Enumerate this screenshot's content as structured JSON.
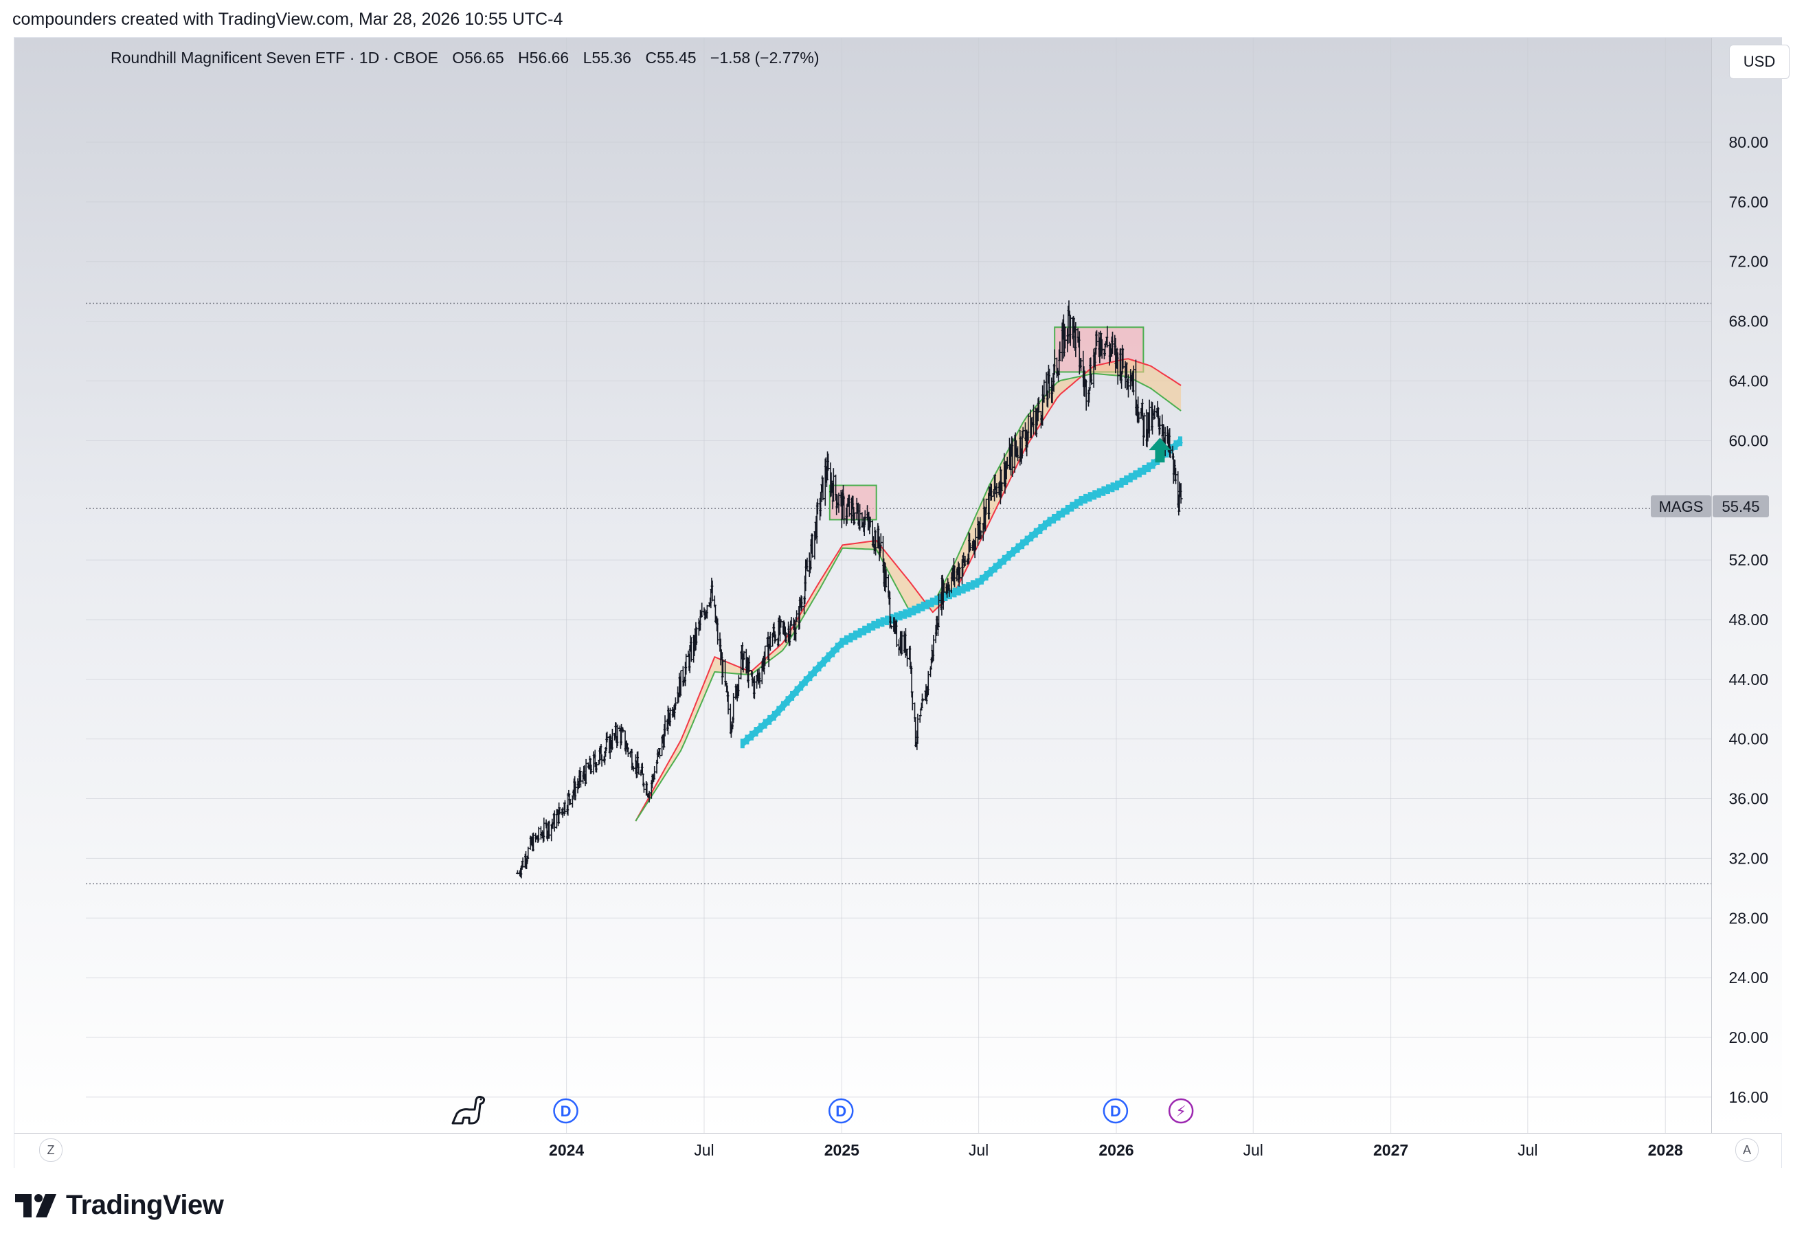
{
  "caption": "compounders created with TradingView.com, Mar 28, 2026 10:55 UTC-4",
  "legend": {
    "name": "Roundhill Magnificent Seven ETF · 1D · CBOE",
    "open": "O56.65",
    "high": "H56.66",
    "low": "L55.36",
    "close": "C55.45",
    "change": "−1.58 (−2.77%)"
  },
  "currency_button": "USD",
  "time_zoom_left": "Z",
  "auto_scale": "A",
  "brand": "TradingView",
  "last_price_tag": {
    "symbol": "MAGS",
    "value": "55.45"
  },
  "colors": {
    "candle": "#131722",
    "ema_fast": "#f23645",
    "ema_slow": "#4caf50",
    "cloud_fill": "#f5c98a",
    "long_ma": "#2bc0d8",
    "box_fill": "#f3b7bd",
    "box_stroke": "#4caf50",
    "arrow": "#089981",
    "dividend_icon": "#2962ff",
    "earnings_icon": "#9c27b0"
  },
  "icons": [
    "dinosaur-icon",
    "dividend-icon",
    "earnings-flash-icon",
    "arrow-up-icon",
    "tradingview-logo-icon"
  ],
  "chart_data": {
    "type": "line",
    "title": "Roundhill Magnificent Seven ETF · 1D · CBOE",
    "xlabel": "",
    "ylabel": "",
    "ylim": [
      13.6,
      87.0
    ],
    "y_ticks": [
      "80.00",
      "76.00",
      "72.00",
      "68.00",
      "64.00",
      "60.00",
      "52.00",
      "48.00",
      "44.00",
      "40.00",
      "36.00",
      "32.00",
      "28.00",
      "24.00",
      "20.00",
      "16.00"
    ],
    "x_ticks": [
      "2024",
      "Jul",
      "2025",
      "Jul",
      "2026",
      "Jul",
      "2027",
      "Jul",
      "2028"
    ],
    "x_range": [
      "2022-04-01",
      "2028-03-01"
    ],
    "horizontal_lines": [
      69.2,
      30.3,
      55.45
    ],
    "series": [
      {
        "style": "price-bars",
        "points": [
          [
            "2023-10-27",
            31.0
          ],
          [
            "2023-11-15",
            33.0
          ],
          [
            "2023-12-15",
            34.5
          ],
          [
            "2024-01-15",
            37.0
          ],
          [
            "2024-02-15",
            39.0
          ],
          [
            "2024-03-10",
            40.5
          ],
          [
            "2024-04-19",
            36.5
          ],
          [
            "2024-05-15",
            41.5
          ],
          [
            "2024-06-15",
            46.0
          ],
          [
            "2024-07-10",
            50.0
          ],
          [
            "2024-08-05",
            41.0
          ],
          [
            "2024-08-20",
            45.5
          ],
          [
            "2024-09-06",
            43.5
          ],
          [
            "2024-09-30",
            47.0
          ],
          [
            "2024-10-31",
            47.5
          ],
          [
            "2024-11-20",
            52.5
          ],
          [
            "2024-12-10",
            58.0
          ],
          [
            "2024-12-31",
            55.5
          ],
          [
            "2025-01-27",
            55.0
          ],
          [
            "2025-02-20",
            53.0
          ],
          [
            "2025-03-10",
            47.0
          ],
          [
            "2025-03-31",
            46.0
          ],
          [
            "2025-04-08",
            40.0
          ],
          [
            "2025-04-22",
            43.0
          ],
          [
            "2025-05-13",
            50.0
          ],
          [
            "2025-06-15",
            52.0
          ],
          [
            "2025-07-15",
            56.0
          ],
          [
            "2025-08-15",
            59.0
          ],
          [
            "2025-09-15",
            61.5
          ],
          [
            "2025-10-10",
            64.5
          ],
          [
            "2025-10-31",
            68.5
          ],
          [
            "2025-11-20",
            63.5
          ],
          [
            "2025-12-10",
            67.0
          ],
          [
            "2025-12-31",
            65.5
          ],
          [
            "2026-01-20",
            64.5
          ],
          [
            "2026-02-05",
            61.0
          ],
          [
            "2026-02-27",
            61.5
          ],
          [
            "2026-03-13",
            59.0
          ],
          [
            "2026-03-27",
            55.45
          ]
        ]
      },
      {
        "style": "ema-fast",
        "points": [
          [
            "2024-04-01",
            34.5
          ],
          [
            "2024-06-01",
            40.0
          ],
          [
            "2024-07-15",
            45.5
          ],
          [
            "2024-09-01",
            44.5
          ],
          [
            "2024-10-15",
            46.5
          ],
          [
            "2024-12-01",
            50.5
          ],
          [
            "2025-01-01",
            53.0
          ],
          [
            "2025-02-15",
            53.3
          ],
          [
            "2025-04-01",
            50.5
          ],
          [
            "2025-05-01",
            48.5
          ],
          [
            "2025-06-01",
            50.0
          ],
          [
            "2025-07-15",
            54.5
          ],
          [
            "2025-09-01",
            59.5
          ],
          [
            "2025-10-15",
            63.0
          ],
          [
            "2025-12-01",
            65.0
          ],
          [
            "2026-01-15",
            65.5
          ],
          [
            "2026-02-15",
            65.0
          ],
          [
            "2026-03-27",
            63.7
          ]
        ]
      },
      {
        "style": "ema-slow",
        "points": [
          [
            "2024-04-01",
            34.5
          ],
          [
            "2024-06-01",
            39.3
          ],
          [
            "2024-07-15",
            44.5
          ],
          [
            "2024-09-01",
            44.3
          ],
          [
            "2024-10-15",
            46.0
          ],
          [
            "2024-12-01",
            50.0
          ],
          [
            "2025-01-01",
            52.8
          ],
          [
            "2025-02-15",
            52.7
          ],
          [
            "2025-04-01",
            48.5
          ],
          [
            "2025-05-01",
            49.0
          ],
          [
            "2025-06-01",
            52.0
          ],
          [
            "2025-07-15",
            57.0
          ],
          [
            "2025-09-01",
            61.5
          ],
          [
            "2025-10-15",
            64.0
          ],
          [
            "2025-12-01",
            64.5
          ],
          [
            "2026-01-15",
            64.3
          ],
          [
            "2026-02-15",
            63.5
          ],
          [
            "2026-03-27",
            62.0
          ]
        ]
      },
      {
        "style": "long-ma",
        "points": [
          [
            "2024-08-21",
            39.7
          ],
          [
            "2024-10-01",
            41.5
          ],
          [
            "2024-11-15",
            44.0
          ],
          [
            "2025-01-01",
            46.5
          ],
          [
            "2025-02-15",
            47.7
          ],
          [
            "2025-04-01",
            48.5
          ],
          [
            "2025-05-15",
            49.5
          ],
          [
            "2025-07-01",
            50.5
          ],
          [
            "2025-08-15",
            52.5
          ],
          [
            "2025-10-01",
            54.5
          ],
          [
            "2025-11-15",
            56.0
          ],
          [
            "2026-01-01",
            57.0
          ],
          [
            "2026-02-15",
            58.3
          ],
          [
            "2026-03-27",
            60.0
          ]
        ]
      }
    ],
    "zones": [
      {
        "x": [
          "2024-12-15",
          "2025-02-15"
        ],
        "y": [
          54.7,
          57.0
        ]
      },
      {
        "x": [
          "2025-10-10",
          "2026-02-05"
        ],
        "y": [
          64.6,
          67.6
        ]
      }
    ],
    "markers": [
      {
        "type": "dividend",
        "label": "D",
        "x": "2023-12-30"
      },
      {
        "type": "dividend",
        "label": "D",
        "x": "2024-12-30"
      },
      {
        "type": "dividend",
        "label": "D",
        "x": "2025-12-30"
      },
      {
        "type": "earnings",
        "label": "⚡",
        "x": "2026-03-27"
      },
      {
        "type": "signal-arrow",
        "x": "2026-02-27",
        "y": 59.0
      }
    ]
  }
}
